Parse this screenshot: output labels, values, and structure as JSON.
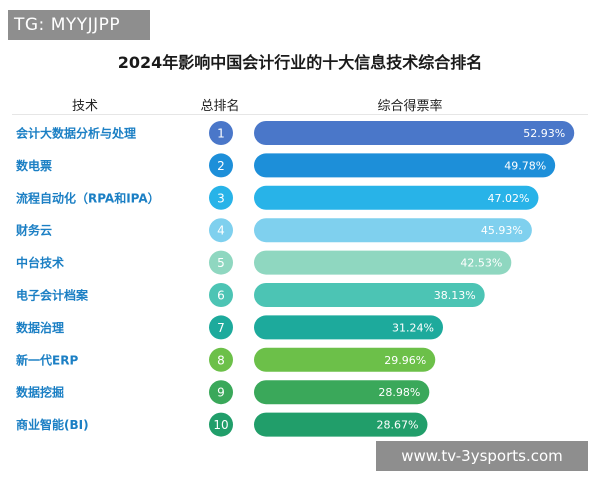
{
  "watermark_top": "TG: MYYJJPP",
  "watermark_bottom": "www.tv-3ysports.com",
  "chart_data": {
    "type": "bar",
    "orientation": "horizontal",
    "title": "2024年影响中国会计行业的十大信息技术综合排名",
    "column_headers": [
      "技术",
      "总排名",
      "综合得票率"
    ],
    "categories": [
      "会计大数据分析与处理",
      "数电票",
      "流程自动化（RPA和IPA）",
      "财务云",
      "中台技术",
      "电子会计档案",
      "数据治理",
      "新一代ERP",
      "数据挖掘",
      "商业智能(BI)"
    ],
    "ranks": [
      "1",
      "2",
      "3",
      "4",
      "5",
      "6",
      "7",
      "8",
      "9",
      "10"
    ],
    "values": [
      52.93,
      49.78,
      47.02,
      45.93,
      42.53,
      38.13,
      31.24,
      29.96,
      28.98,
      28.67
    ],
    "value_labels": [
      "52.93%",
      "49.78%",
      "47.02%",
      "45.93%",
      "42.53%",
      "38.13%",
      "31.24%",
      "29.96%",
      "28.98%",
      "28.67%"
    ],
    "colors": [
      "#4a77c9",
      "#1d8fd9",
      "#28b3e8",
      "#7fd0ee",
      "#8fd7c0",
      "#4cc4b4",
      "#1daa9c",
      "#6cc049",
      "#3aa85a",
      "#219e6a"
    ],
    "grid": false,
    "legend": "none"
  }
}
